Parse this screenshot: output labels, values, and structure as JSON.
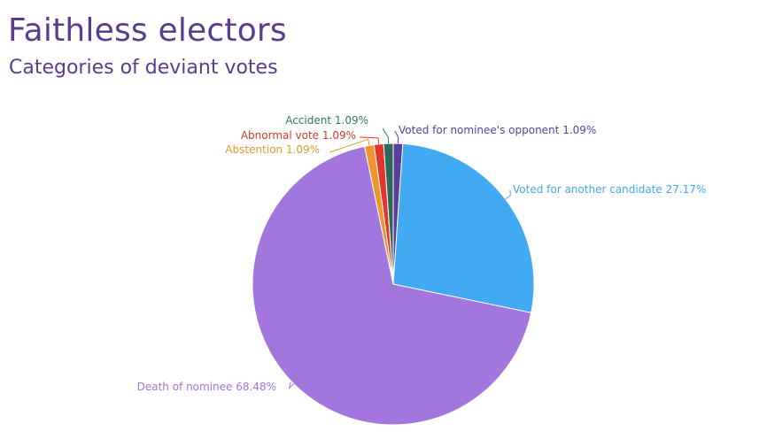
{
  "header": {
    "title": "Faithless electors",
    "subtitle": "Categories of deviant votes"
  },
  "chart_data": {
    "type": "pie",
    "title": "Faithless electors",
    "subtitle": "Categories of deviant votes",
    "slices": [
      {
        "name": "Voted for nominee's opponent",
        "value": 1.09,
        "label": "Voted for nominee's opponent 1.09%",
        "color": "#5b3f9e",
        "label_color": "#5b3f9e"
      },
      {
        "name": "Voted for another candidate",
        "value": 27.17,
        "label": "Voted for another candidate 27.17%",
        "color": "#42a9f3",
        "label_color": "#42a9f3"
      },
      {
        "name": "Death of nominee",
        "value": 68.48,
        "label": "Death of nominee 68.48%",
        "color": "#a276dd",
        "label_color": "#a276dd"
      },
      {
        "name": "Abstention",
        "value": 1.09,
        "label": "Abstention 1.09%",
        "color": "#f1942e",
        "label_color": "#e39a2f"
      },
      {
        "name": "Abnormal vote",
        "value": 1.09,
        "label": "Abnormal vote 1.09%",
        "color": "#e2352c",
        "label_color": "#d63a2c"
      },
      {
        "name": "Accident",
        "value": 1.09,
        "label": "Accident 1.09%",
        "color": "#2d6a5a",
        "label_color": "#2d7a63"
      }
    ]
  }
}
